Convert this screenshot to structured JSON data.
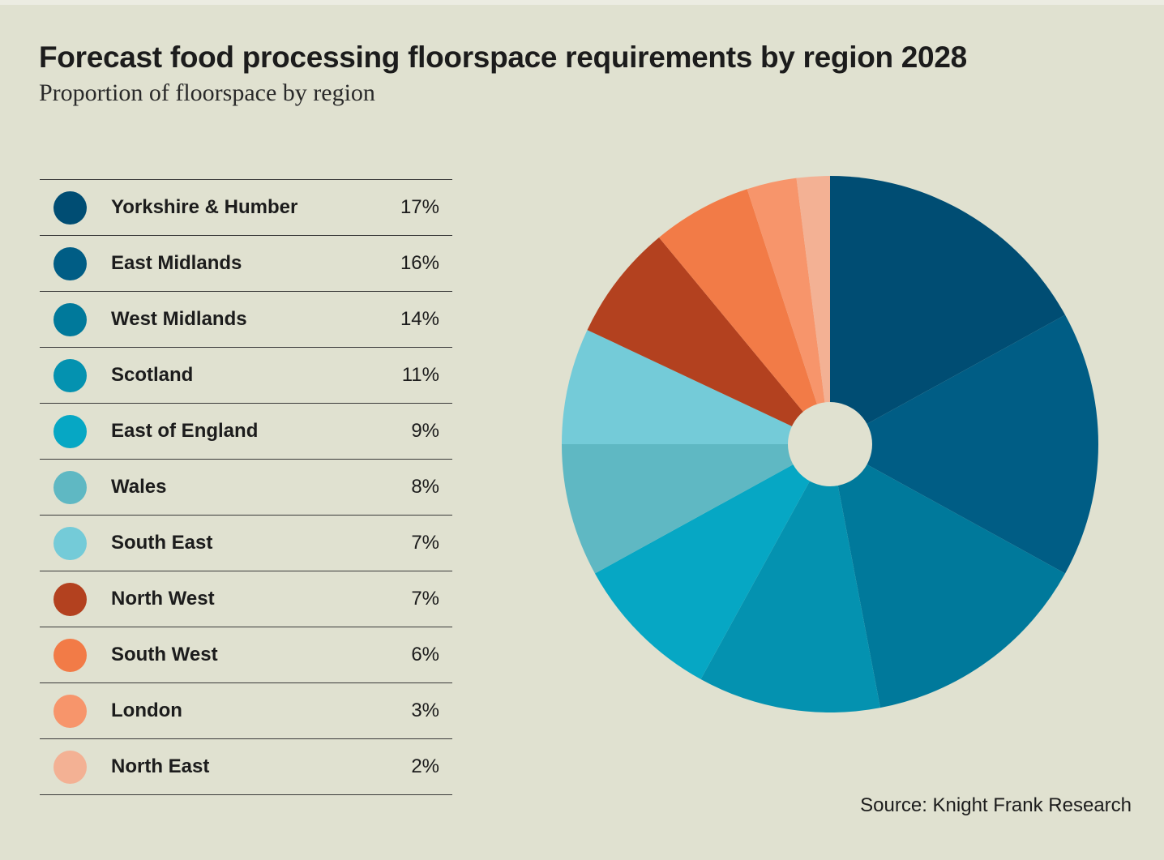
{
  "header": {
    "title": "Forecast food processing floorspace requirements by region 2028",
    "subtitle": "Proportion of floorspace by region"
  },
  "source": "Source: Knight Frank Research",
  "colors": {
    "background": "#e0e1d0",
    "Yorkshire & Humber": "#004d73",
    "East Midlands": "#005d85",
    "West Midlands": "#00799b",
    "Scotland": "#0492b0",
    "East of England": "#06a7c4",
    "Wales": "#5fb8c3",
    "South East": "#74cbd8",
    "North West": "#b3411f",
    "South West": "#f27b47",
    "London": "#f7956b",
    "North East": "#f3b194"
  },
  "legend": [
    {
      "label": "Yorkshire & Humber",
      "value": "17%"
    },
    {
      "label": "East Midlands",
      "value": "16%"
    },
    {
      "label": "West Midlands",
      "value": "14%"
    },
    {
      "label": "Scotland",
      "value": "11%"
    },
    {
      "label": "East of England",
      "value": "9%"
    },
    {
      "label": "Wales",
      "value": "8%"
    },
    {
      "label": "South East",
      "value": "7%"
    },
    {
      "label": "North West",
      "value": "7%"
    },
    {
      "label": "South West",
      "value": "6%"
    },
    {
      "label": "London",
      "value": "3%"
    },
    {
      "label": "North East",
      "value": "2%"
    }
  ],
  "chart_data": {
    "type": "pie",
    "title": "Forecast food processing floorspace requirements by region 2028",
    "subtitle": "Proportion of floorspace by region",
    "categories": [
      "Yorkshire & Humber",
      "East Midlands",
      "West Midlands",
      "Scotland",
      "East of England",
      "Wales",
      "South East",
      "North West",
      "South West",
      "London",
      "North East"
    ],
    "values": [
      17,
      16,
      14,
      11,
      9,
      8,
      7,
      7,
      6,
      3,
      2
    ],
    "unit": "%",
    "legend_position": "left"
  }
}
